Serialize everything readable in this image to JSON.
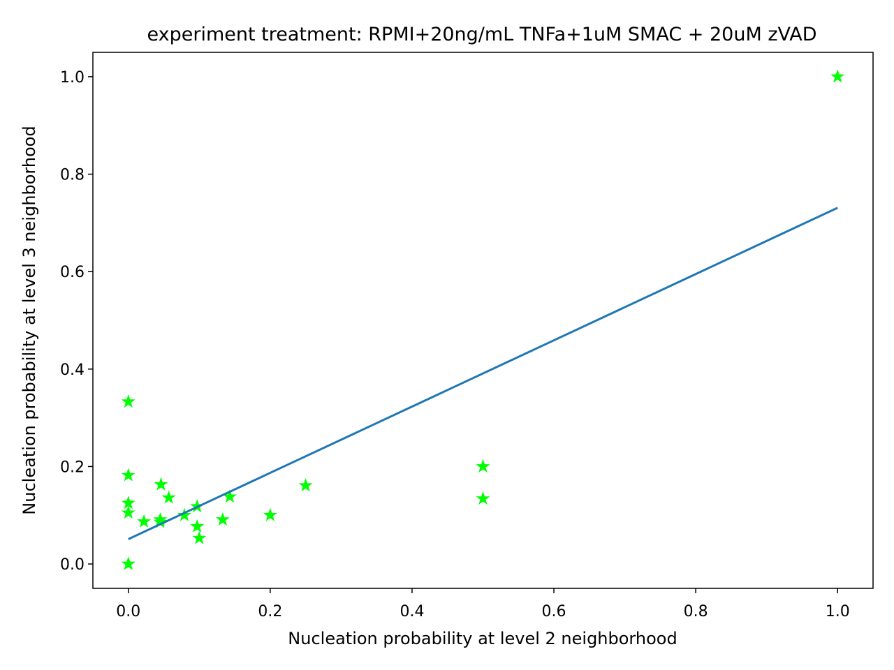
{
  "chart_data": {
    "type": "scatter",
    "title": "experiment treatment: RPMI+20ng/mL TNFa+1uM SMAC + 20uM zVAD",
    "xlabel": "Nucleation probability at level 2 neighborhood",
    "ylabel": "Nucleation probability at level 3 neighborhood",
    "xlim": [
      -0.05,
      1.05
    ],
    "ylim": [
      -0.05,
      1.05
    ],
    "xticks": [
      0.0,
      0.2,
      0.4,
      0.6,
      0.8,
      1.0
    ],
    "yticks": [
      0.0,
      0.2,
      0.4,
      0.6,
      0.8,
      1.0
    ],
    "x_tick_labels": [
      "0.0",
      "0.2",
      "0.4",
      "0.6",
      "0.8",
      "1.0"
    ],
    "y_tick_labels": [
      "0.0",
      "0.2",
      "0.4",
      "0.6",
      "0.8",
      "1.0"
    ],
    "grid": false,
    "series": [
      {
        "type": "scatter",
        "marker": "star",
        "color": "#00ff00",
        "points": [
          {
            "x": 0.0,
            "y": 0.333
          },
          {
            "x": 0.0,
            "y": 0.182
          },
          {
            "x": 0.0,
            "y": 0.125
          },
          {
            "x": 0.0,
            "y": 0.105
          },
          {
            "x": 0.0,
            "y": 0.0
          },
          {
            "x": 0.0,
            "y": 0.0
          },
          {
            "x": 0.022,
            "y": 0.087
          },
          {
            "x": 0.045,
            "y": 0.091
          },
          {
            "x": 0.045,
            "y": 0.086
          },
          {
            "x": 0.046,
            "y": 0.163
          },
          {
            "x": 0.057,
            "y": 0.136
          },
          {
            "x": 0.079,
            "y": 0.1
          },
          {
            "x": 0.097,
            "y": 0.118
          },
          {
            "x": 0.097,
            "y": 0.077
          },
          {
            "x": 0.1,
            "y": 0.053
          },
          {
            "x": 0.133,
            "y": 0.091
          },
          {
            "x": 0.143,
            "y": 0.138
          },
          {
            "x": 0.2,
            "y": 0.1
          },
          {
            "x": 0.25,
            "y": 0.161
          },
          {
            "x": 0.5,
            "y": 0.2
          },
          {
            "x": 0.5,
            "y": 0.134
          },
          {
            "x": 1.0,
            "y": 1.0
          }
        ]
      },
      {
        "type": "line",
        "color": "#1f77b4",
        "points": [
          {
            "x": 0.0,
            "y": 0.051
          },
          {
            "x": 1.0,
            "y": 0.731
          }
        ]
      }
    ]
  }
}
